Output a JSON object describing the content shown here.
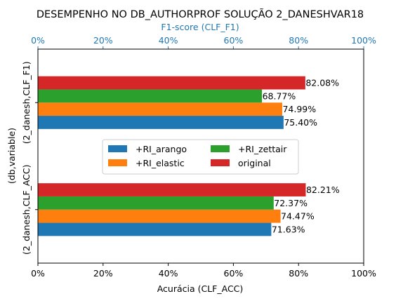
{
  "chart_data": {
    "type": "bar",
    "orientation": "horizontal",
    "title": "DESEMPENHO NO DB_AUTHORPROF SOLUÇÃO 2_DANESHVAR18",
    "xlabel": "Acurácia (CLF_ACC)",
    "xlabel_top": "F1-score (CLF_F1)",
    "ylabel": "(db,variable)",
    "xlim": [
      0,
      100
    ],
    "x_ticks": [
      "0%",
      "20%",
      "40%",
      "60%",
      "80%",
      "100%"
    ],
    "grid": false,
    "legend_position": "center",
    "categories": [
      "(2_danesh,CLF_ACC)",
      "(2_danesh,CLF_F1)"
    ],
    "series": [
      {
        "name": "+RI_arango",
        "color": "#1f77b4",
        "values": [
          71.63,
          75.4
        ],
        "labels": [
          "71.63%",
          "75.40%"
        ]
      },
      {
        "name": "+RI_elastic",
        "color": "#ff7f0e",
        "values": [
          74.47,
          74.99
        ],
        "labels": [
          "74.47%",
          "74.99%"
        ]
      },
      {
        "name": "+RI_zettair",
        "color": "#2ca02c",
        "values": [
          72.37,
          68.77
        ],
        "labels": [
          "72.37%",
          "68.77%"
        ]
      },
      {
        "name": "original",
        "color": "#d62728",
        "values": [
          82.21,
          82.08
        ],
        "labels": [
          "82.21%",
          "82.08%"
        ]
      }
    ],
    "top_axis_color": "#1f77b4"
  }
}
